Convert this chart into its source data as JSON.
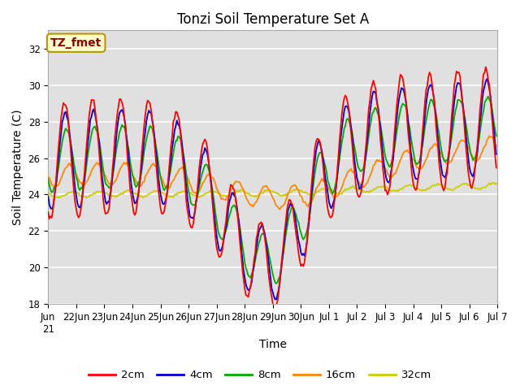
{
  "title": "Tonzi Soil Temperature Set A",
  "xlabel": "Time",
  "ylabel": "Soil Temperature (C)",
  "ylim": [
    18,
    33
  ],
  "yticks": [
    18,
    20,
    22,
    24,
    26,
    28,
    30,
    32
  ],
  "plot_bg_color": "#e0e0e0",
  "annotation_text": "TZ_fmet",
  "annotation_color": "#8b0000",
  "annotation_bg": "#ffffcc",
  "annotation_border": "#b8960c",
  "legend_entries": [
    "2cm",
    "4cm",
    "8cm",
    "16cm",
    "32cm"
  ],
  "line_colors": [
    "#ff0000",
    "#0000cc",
    "#00aa00",
    "#ff8800",
    "#cccc00"
  ],
  "title_fontsize": 12,
  "axis_label_fontsize": 10,
  "tick_fontsize": 8.5
}
